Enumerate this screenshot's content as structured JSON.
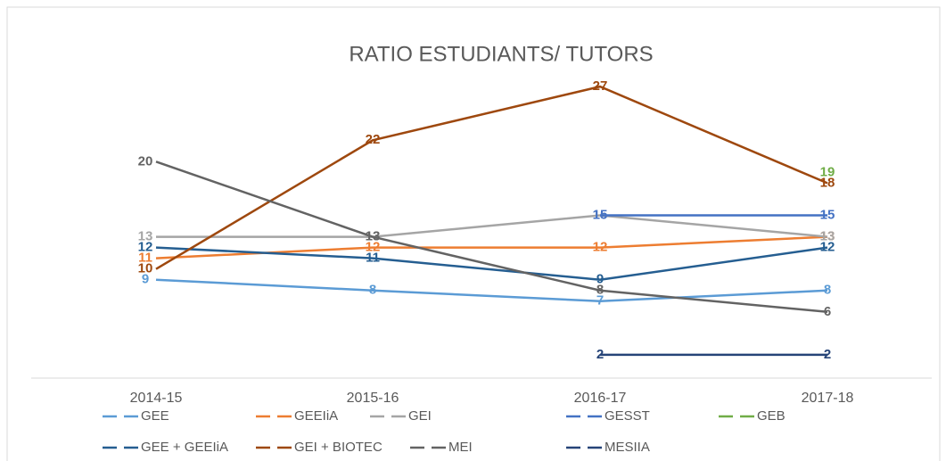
{
  "chart_data": {
    "type": "line",
    "title": "RATIO ESTUDIANTS/ TUTORS",
    "categories": [
      "2014-15",
      "2015-16",
      "2016-17",
      "2017-18"
    ],
    "ylim": [
      0,
      30
    ],
    "series": [
      {
        "name": "GEE",
        "color": "#5b9bd5",
        "values": [
          9,
          8,
          7,
          8
        ]
      },
      {
        "name": "GEEIiA",
        "color": "#ed7d31",
        "values": [
          11,
          12,
          12,
          13
        ]
      },
      {
        "name": "GEI",
        "color": "#a5a5a5",
        "values": [
          13,
          13,
          15,
          13
        ]
      },
      {
        "name": "GESST",
        "color": "#4472c4",
        "values": [
          null,
          null,
          15,
          15
        ]
      },
      {
        "name": "GEB",
        "color": "#70ad47",
        "values": [
          null,
          null,
          null,
          19
        ]
      },
      {
        "name": "GEE + GEEIiA",
        "color": "#255e91",
        "values": [
          12,
          11,
          9,
          12
        ]
      },
      {
        "name": "GEI + BIOTEC",
        "color": "#9e480e",
        "values": [
          10,
          22,
          27,
          18
        ]
      },
      {
        "name": "MEI",
        "color": "#636363",
        "values": [
          20,
          13,
          8,
          6
        ]
      },
      {
        "name": "MESIIA",
        "color": "#264478",
        "values": [
          null,
          null,
          2,
          2
        ]
      }
    ]
  }
}
